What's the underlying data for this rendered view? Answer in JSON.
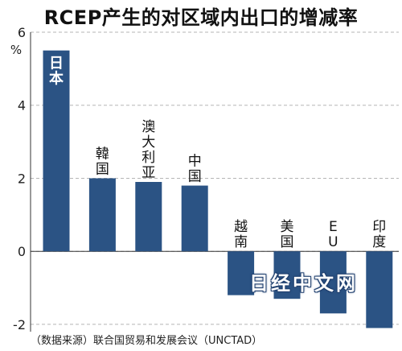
{
  "title": "RCEP产生的对区域内出口的增减率",
  "source": "（数据来源）联合国贸易和发展会议（UNCTAD）",
  "watermark": "日经中文网",
  "colors": {
    "bar": "#2b5384",
    "grid": "#b5b5b5",
    "axis": "#333333"
  },
  "chart_data": {
    "type": "bar",
    "categories": [
      "日本",
      "韓国",
      "澳大利亚",
      "中国",
      "越南",
      "美国",
      "EU",
      "印度"
    ],
    "values": [
      5.5,
      2.0,
      1.9,
      1.8,
      -1.2,
      -1.3,
      -1.7,
      -2.1
    ],
    "ylabel": "%",
    "ylim": [
      -2.2,
      6
    ],
    "yticks": [
      -2,
      0,
      2,
      4,
      6
    ],
    "grid": true,
    "title": "RCEP产生的对区域内出口的增减率"
  }
}
